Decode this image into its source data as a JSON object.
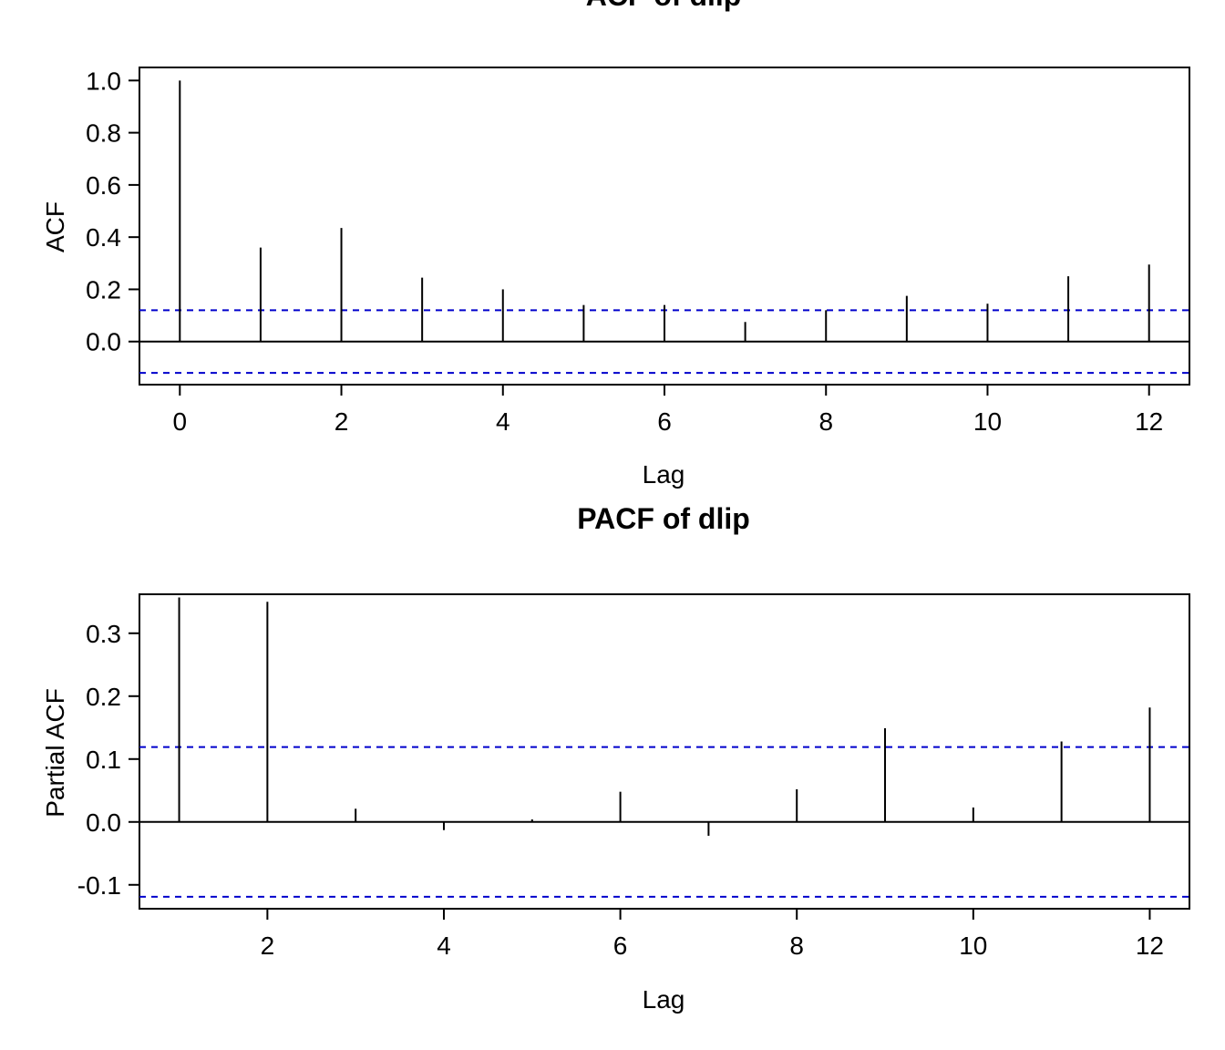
{
  "chart_data": [
    {
      "type": "bar",
      "subtype": "acf",
      "title": "ACF of dlip",
      "xlabel": "Lag",
      "ylabel": "ACF",
      "x": [
        0,
        1,
        2,
        3,
        4,
        5,
        6,
        7,
        8,
        9,
        10,
        11,
        12
      ],
      "values": [
        1.0,
        0.36,
        0.435,
        0.245,
        0.2,
        0.14,
        0.14,
        0.075,
        0.12,
        0.175,
        0.145,
        0.25,
        0.295
      ],
      "confidence_band": [
        -0.12,
        0.12
      ],
      "xlim": [
        -0.5,
        12.5
      ],
      "ylim": [
        -0.165,
        1.05
      ],
      "xticks": [
        0,
        2,
        4,
        6,
        8,
        10,
        12
      ],
      "yticks": [
        0.0,
        0.2,
        0.4,
        0.6,
        0.8,
        1.0
      ],
      "ytick_labels": [
        "0.0",
        "0.2",
        "0.4",
        "0.6",
        "0.8",
        "1.0"
      ],
      "grid": false,
      "colors": {
        "bars": "#000000",
        "confidence": "#0000cc"
      }
    },
    {
      "type": "bar",
      "subtype": "pacf",
      "title": "PACF of dlip",
      "xlabel": "Lag",
      "ylabel": "Partial ACF",
      "x": [
        1,
        2,
        3,
        4,
        5,
        6,
        7,
        8,
        9,
        10,
        11,
        12
      ],
      "values": [
        0.357,
        0.35,
        0.021,
        -0.013,
        0.004,
        0.048,
        -0.022,
        0.052,
        0.149,
        0.023,
        0.128,
        0.182
      ],
      "confidence_band": [
        -0.119,
        0.119
      ],
      "xlim": [
        0.55,
        12.45
      ],
      "ylim": [
        -0.138,
        0.362
      ],
      "xticks": [
        2,
        4,
        6,
        8,
        10,
        12
      ],
      "yticks": [
        -0.1,
        0.0,
        0.1,
        0.2,
        0.3
      ],
      "ytick_labels": [
        "-0.1",
        "0.0",
        "0.1",
        "0.2",
        "0.3"
      ],
      "grid": false,
      "colors": {
        "bars": "#000000",
        "confidence": "#0000cc"
      }
    }
  ]
}
